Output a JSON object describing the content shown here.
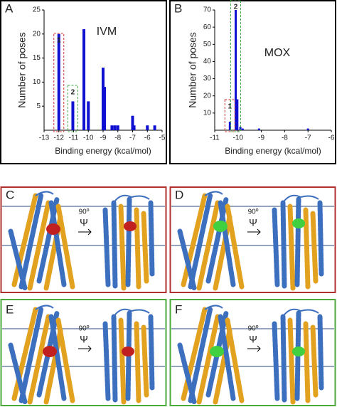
{
  "chart_data": [
    {
      "type": "bar",
      "label": "IVM",
      "x_label": "Binding energy (kcal/mol)",
      "y_label": "Number of poses",
      "x": [
        -12,
        -11.05,
        -10.3,
        -10,
        -9,
        -8.9,
        -8.4,
        -8.2,
        -8,
        -7,
        -6.9,
        -6,
        -5.5
      ],
      "values": [
        20,
        6,
        21,
        6,
        13,
        9,
        1,
        1,
        1,
        3,
        1,
        1,
        1
      ],
      "color": "#1010d0",
      "xlim": [
        -13,
        -5
      ],
      "xticks": [
        -13,
        -12,
        -11,
        -10,
        -9,
        -8,
        -7,
        -6,
        -5
      ],
      "ylim": [
        0,
        25
      ],
      "yticks": [
        5,
        10,
        15,
        20,
        25
      ],
      "annotations": [
        {
          "text": "1",
          "color": "#cc3333"
        },
        {
          "text": "2",
          "color": "#44aa44"
        }
      ]
    },
    {
      "type": "bar",
      "label": "MOX",
      "x_label": "Binding energy (kcal/mol)",
      "y_label": "Number of poses",
      "x": [
        -10.35,
        -10.1,
        -10.03,
        -9.9,
        -9.8,
        -9.1,
        -7
      ],
      "values": [
        5,
        70,
        18,
        2,
        1,
        1,
        1
      ],
      "color": "#1010d0",
      "xlim": [
        -11,
        -6
      ],
      "xticks": [
        -11,
        -10,
        -9,
        -8,
        -7,
        -6
      ],
      "ylim": [
        0,
        70
      ],
      "yticks": [
        10,
        20,
        30,
        40,
        50,
        60,
        70
      ],
      "annotations": [
        {
          "text": "1",
          "color": "#cc3333"
        },
        {
          "text": "2",
          "color": "#44aa44"
        }
      ]
    }
  ],
  "panel_labels": [
    "A",
    "B",
    "C",
    "D",
    "E",
    "F"
  ],
  "rotation": {
    "angle": "90º",
    "symbol": "Ψ"
  }
}
